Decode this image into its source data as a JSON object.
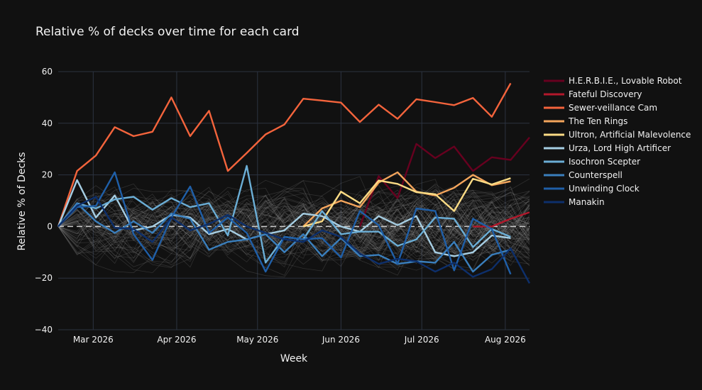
{
  "chart_data": {
    "type": "line",
    "title": "Relative  % of decks over time for each card",
    "xlabel": "Week",
    "ylabel": "Relative % of Decks",
    "ylim": [
      -40,
      60
    ],
    "xlim": [
      "2026-02-16",
      "2026-08-10"
    ],
    "grid": true,
    "legend_position": "right",
    "yticks": [
      "60",
      "40",
      "20",
      "0",
      "−20",
      "−40"
    ],
    "xticks": [
      {
        "date": "2026-03-01",
        "label": "Mar 2026"
      },
      {
        "date": "2026-04-01",
        "label": "Apr 2026"
      },
      {
        "date": "2026-05-01",
        "label": "May 2026"
      },
      {
        "date": "2026-06-01",
        "label": "Jun 2026"
      },
      {
        "date": "2026-07-01",
        "label": "Jul 2026"
      },
      {
        "date": "2026-08-01",
        "label": "Aug 2026"
      }
    ],
    "background_lines_color": "#9a9a9a",
    "x": [
      "2026-02-16",
      "2026-02-23",
      "2026-03-02",
      "2026-03-09",
      "2026-03-16",
      "2026-03-23",
      "2026-03-30",
      "2026-04-06",
      "2026-04-13",
      "2026-04-20",
      "2026-04-27",
      "2026-05-04",
      "2026-05-11",
      "2026-05-18",
      "2026-05-25",
      "2026-06-01",
      "2026-06-08",
      "2026-06-15",
      "2026-06-22",
      "2026-06-29",
      "2026-07-06",
      "2026-07-13",
      "2026-07-20",
      "2026-07-27",
      "2026-08-03",
      "2026-08-10"
    ],
    "series": [
      {
        "name": "H.E.R.B.I.E., Lovable Robot",
        "color": "#67001f",
        "values": [
          null,
          null,
          null,
          null,
          null,
          null,
          null,
          null,
          null,
          null,
          null,
          null,
          null,
          null,
          null,
          null,
          0,
          19.5,
          11,
          32,
          26.5,
          31,
          21.5,
          26.8,
          25.8,
          34.5
        ]
      },
      {
        "name": "Fateful Discovery",
        "color": "#b2182b",
        "values": [
          null,
          null,
          null,
          null,
          null,
          null,
          null,
          null,
          null,
          null,
          null,
          null,
          null,
          null,
          null,
          null,
          null,
          null,
          null,
          null,
          null,
          null,
          0,
          0,
          3,
          5.5
        ]
      },
      {
        "name": "Sewer-veillance Cam",
        "color": "#f4643c",
        "values": [
          0,
          21.5,
          27.5,
          38.5,
          35,
          36.7,
          50,
          35,
          44.8,
          21.5,
          28.5,
          35.7,
          39.5,
          49.5,
          48.8,
          48,
          40.5,
          47.2,
          41.7,
          49.3,
          48.2,
          47,
          49.8,
          42.5,
          55.5,
          null
        ]
      },
      {
        "name": "The Ten Rings",
        "color": "#f4a55c",
        "values": [
          null,
          null,
          null,
          null,
          null,
          null,
          null,
          null,
          null,
          null,
          null,
          null,
          null,
          0,
          7,
          10,
          7.5,
          17,
          21,
          13.5,
          12,
          15,
          20,
          16,
          17.5,
          null
        ]
      },
      {
        "name": "Ultron, Artificial Malevolence",
        "color": "#fddc85",
        "values": [
          null,
          null,
          null,
          null,
          null,
          null,
          null,
          null,
          null,
          null,
          null,
          null,
          null,
          0,
          2,
          13.5,
          9,
          17.8,
          16.5,
          13.3,
          12.5,
          6,
          18.5,
          16.3,
          18.7,
          null
        ]
      },
      {
        "name": "Urza, Lord High Artificer",
        "color": "#a6cee3",
        "values": [
          0,
          18,
          3.5,
          12,
          -1.5,
          0,
          4.5,
          3.5,
          -3,
          -1,
          -5,
          -3,
          -1.5,
          5,
          4,
          0,
          -2,
          4,
          0.5,
          4,
          -10,
          -11.5,
          -10,
          -3.5,
          -4.5,
          null
        ]
      },
      {
        "name": "Isochron Scepter",
        "color": "#6baed6",
        "values": [
          0,
          9,
          7,
          10.5,
          11.5,
          6.5,
          11,
          7.5,
          9,
          -3.5,
          23.5,
          -14,
          -4,
          -5,
          6,
          -3,
          -2,
          -2,
          -7.5,
          -5,
          3.5,
          3,
          -8,
          -1,
          -4,
          null
        ]
      },
      {
        "name": "Counterspell",
        "color": "#3a7fbd",
        "values": [
          0,
          9,
          2,
          -2.5,
          2,
          -2.5,
          5,
          3,
          -9,
          -6,
          -5,
          -3,
          -10,
          -3,
          -11.5,
          -4.5,
          -11.5,
          -11,
          -14.5,
          -13.5,
          -14,
          -6,
          -17.5,
          -11,
          -9,
          null
        ]
      },
      {
        "name": "Unwinding Clock",
        "color": "#1f5fa8",
        "values": [
          0,
          7.5,
          8,
          21,
          -3,
          -13,
          3.5,
          15.5,
          -2.5,
          3.5,
          -2.5,
          -17.5,
          -4,
          -5,
          -4.5,
          -12,
          6,
          0.5,
          -14.5,
          7,
          6,
          -17,
          3,
          -1,
          -18.5,
          null
        ]
      },
      {
        "name": "Manakin",
        "color": "#0d2f6b",
        "values": [
          0,
          8,
          11.5,
          -0.5,
          -1,
          -6,
          3.5,
          -1.5,
          1,
          4.5,
          0,
          -2.5,
          -5,
          -6,
          -1.5,
          -4,
          -10.5,
          -14.5,
          -12.5,
          -13.5,
          -17.5,
          -14,
          -19.5,
          -16.5,
          -8.5,
          -22
        ]
      }
    ]
  }
}
